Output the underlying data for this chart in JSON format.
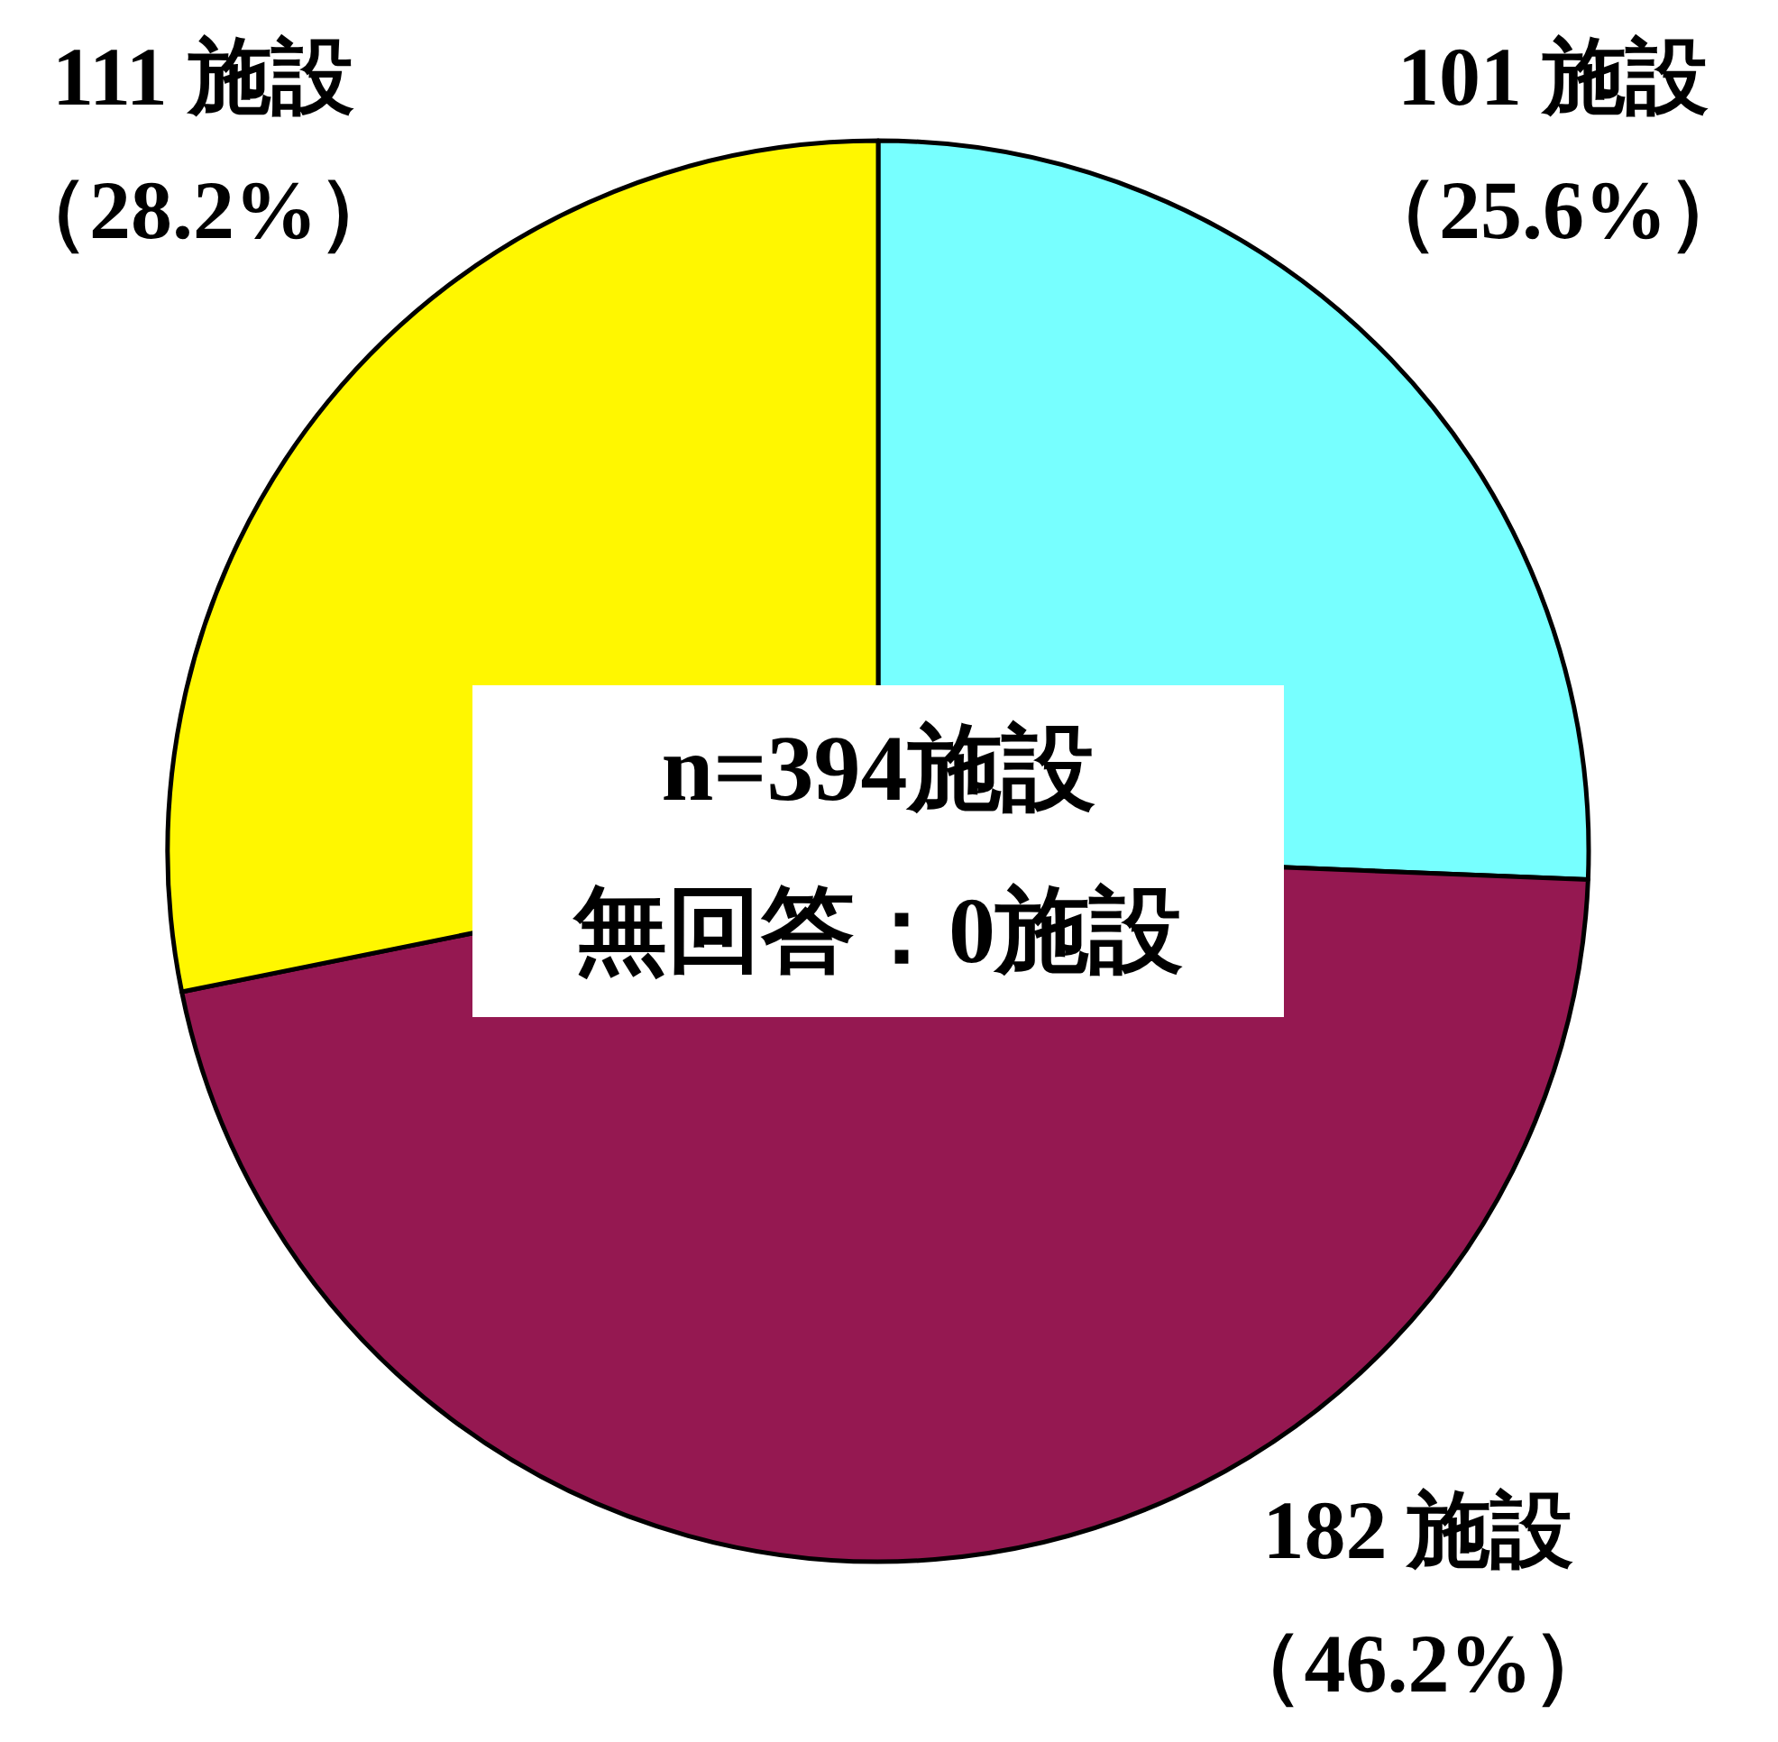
{
  "chart_data": {
    "type": "pie",
    "categories": [
      null,
      null,
      null
    ],
    "values": [
      101,
      182,
      111
    ],
    "colors": [
      "#77ffff",
      "#951851",
      "#fff700"
    ],
    "value_labels": [
      "101 施設（25.6%）",
      "182 施設（46.2%）",
      "111 施設（28.2%）"
    ],
    "annotations": [
      "n=394施設",
      "無回答：0施設"
    ]
  }
}
